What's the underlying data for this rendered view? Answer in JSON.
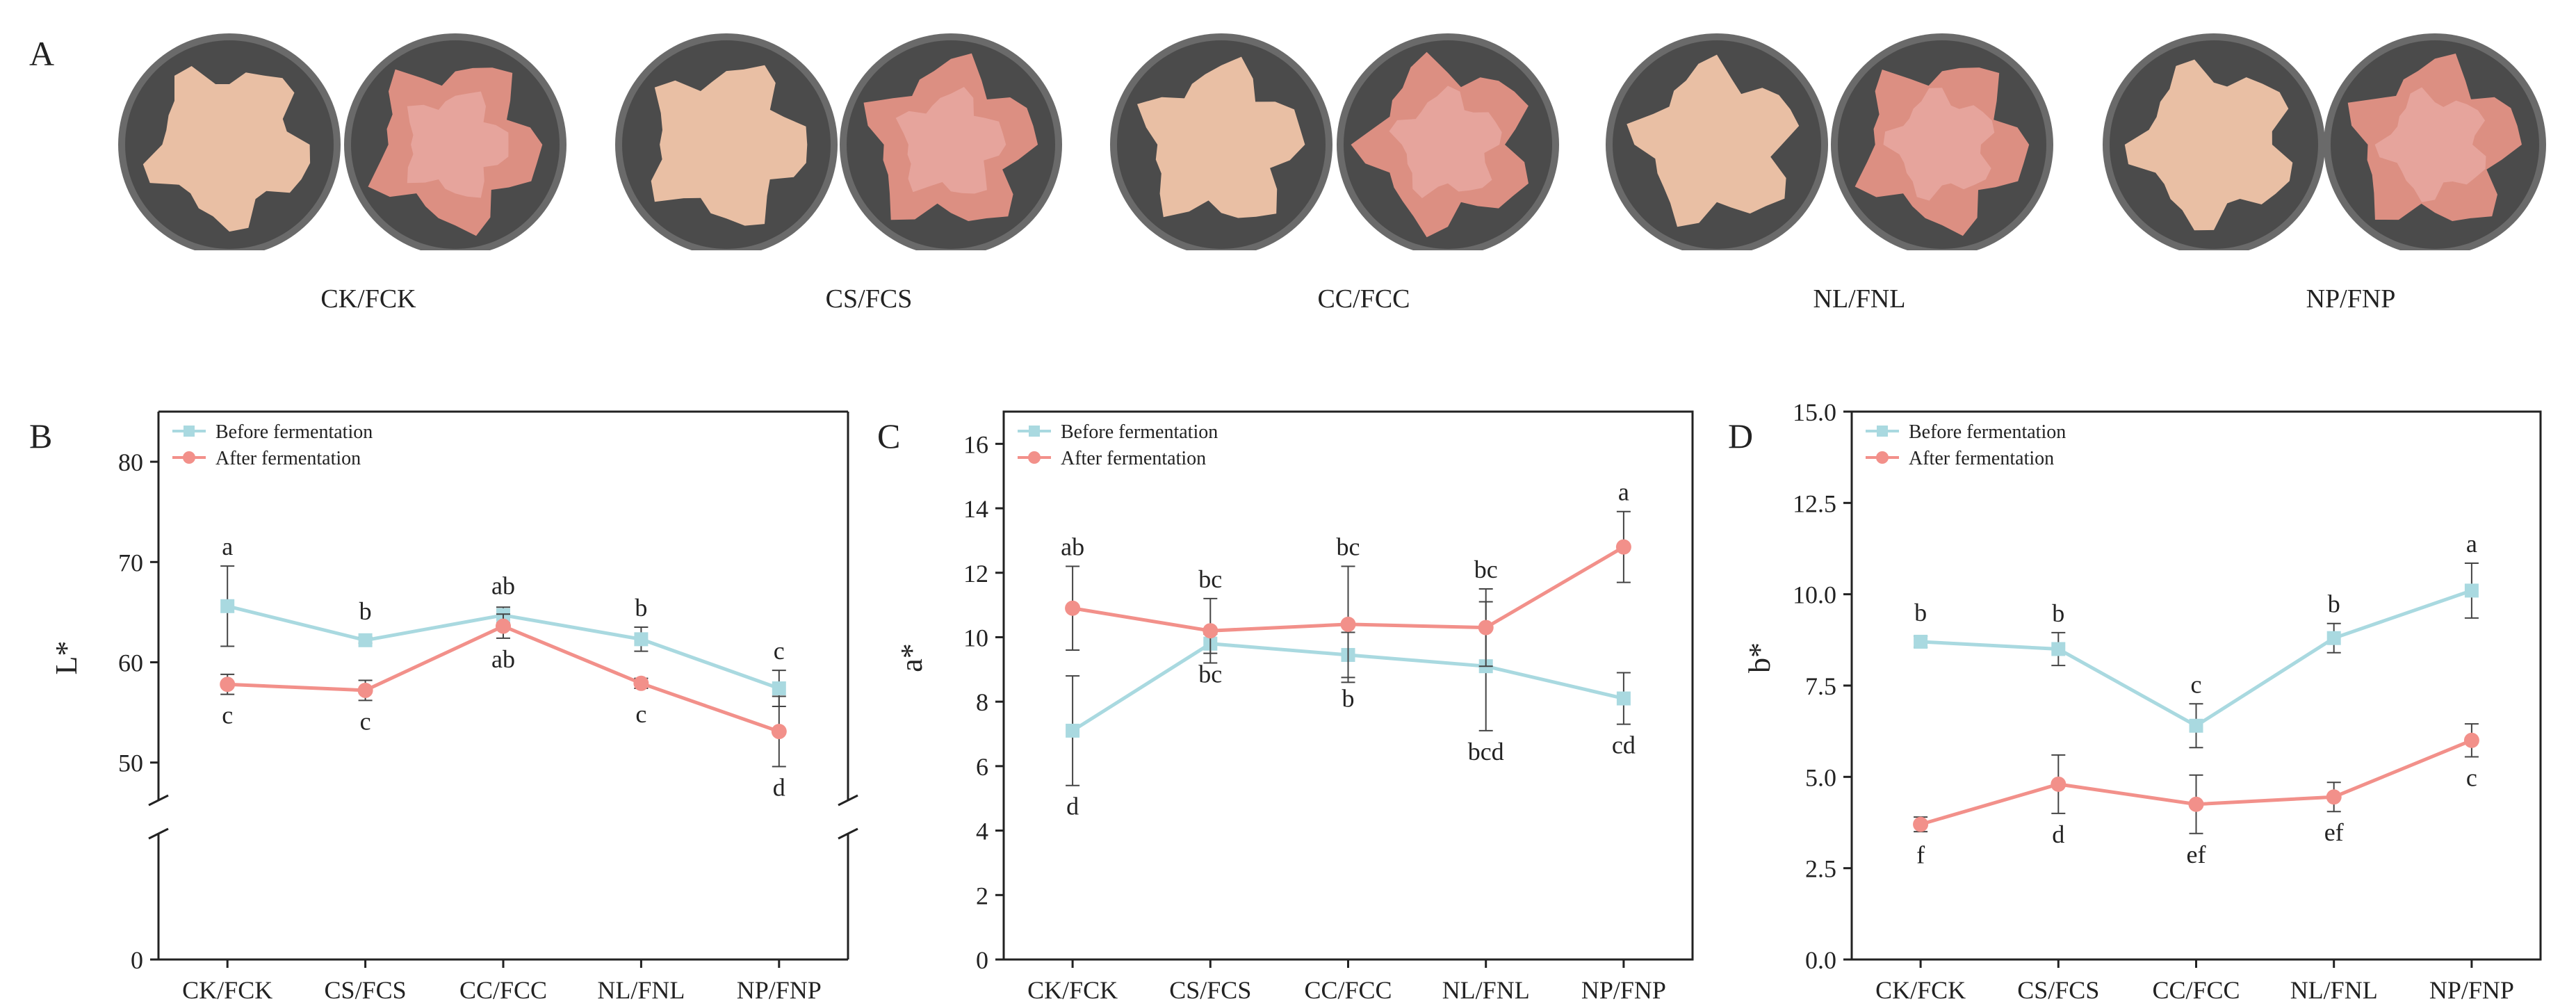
{
  "panel_a": {
    "label": "A",
    "samples": [
      "CK/FCK",
      "CS/FCS",
      "CC/FCC",
      "NL/FNL",
      "NP/FNP"
    ]
  },
  "colors": {
    "before": "#a9d9e0",
    "after": "#f2908a",
    "dish_outer": "#6a6a6a",
    "dish_inner": "#4b4b4b",
    "meat_raw": "#e9bfa4",
    "meat_fermented": "#dc8f82",
    "meat_fermented_center": "#e6a49c"
  },
  "chart_data": [
    {
      "type": "line",
      "panel": "B",
      "ylabel": "L*",
      "xlabel": "",
      "categories": [
        "CK/FCK",
        "CS/FCS",
        "CC/FCC",
        "NL/FNL",
        "NP/FNP"
      ],
      "ylim": [
        0,
        85
      ],
      "axis_break": [
        42,
        47
      ],
      "yticks": [
        0,
        50,
        60,
        70,
        80
      ],
      "ytick_labels": [
        "0",
        "50",
        "60",
        "70",
        "80"
      ],
      "legend": [
        "Before fermentation",
        "After fermentation"
      ],
      "legend_position": "top-left",
      "series": [
        {
          "name": "Before fermentation",
          "values": [
            65.6,
            62.2,
            64.7,
            62.3,
            57.4
          ],
          "errors": [
            4.0,
            0.3,
            0.8,
            1.2,
            1.8
          ],
          "letters": [
            "a",
            "b",
            "ab",
            "b",
            "c"
          ],
          "letter_position": "above"
        },
        {
          "name": "After fermentation",
          "values": [
            57.8,
            57.2,
            63.6,
            57.9,
            53.1
          ],
          "errors": [
            1.0,
            1.0,
            1.2,
            0.5,
            3.5
          ],
          "letters": [
            "c",
            "c",
            "ab",
            "c",
            "d"
          ],
          "letter_position": "below"
        }
      ]
    },
    {
      "type": "line",
      "panel": "C",
      "ylabel": "a*",
      "xlabel": "",
      "categories": [
        "CK/FCK",
        "CS/FCS",
        "CC/FCC",
        "NL/FNL",
        "NP/FNP"
      ],
      "ylim": [
        0,
        17
      ],
      "yticks": [
        0,
        2,
        4,
        6,
        8,
        10,
        12,
        14,
        16
      ],
      "ytick_labels": [
        "0",
        "2",
        "4",
        "6",
        "8",
        "10",
        "12",
        "14",
        "16"
      ],
      "legend": [
        "Before fermentation",
        "After fermentation"
      ],
      "legend_position": "top-left",
      "series": [
        {
          "name": "Before fermentation",
          "values": [
            7.1,
            9.8,
            9.45,
            9.1,
            8.1
          ],
          "errors": [
            1.7,
            0.3,
            0.7,
            2.0,
            0.8
          ],
          "letters": [
            "d",
            "bc",
            "b",
            "bcd",
            "cd"
          ],
          "letter_position": "below"
        },
        {
          "name": "After fermentation",
          "values": [
            10.9,
            10.2,
            10.4,
            10.3,
            12.8
          ],
          "errors": [
            1.3,
            1.0,
            1.8,
            1.2,
            1.1
          ],
          "letters": [
            "ab",
            "bc",
            "bc",
            "bc",
            "a"
          ],
          "letter_position": "above"
        }
      ]
    },
    {
      "type": "line",
      "panel": "D",
      "ylabel": "b*",
      "xlabel": "",
      "categories": [
        "CK/FCK",
        "CS/FCS",
        "CC/FCC",
        "NL/FNL",
        "NP/FNP"
      ],
      "ylim": [
        0,
        15
      ],
      "yticks": [
        0,
        2.5,
        5,
        7.5,
        10,
        12.5,
        15
      ],
      "ytick_labels": [
        "0.0",
        "2.5",
        "5.0",
        "7.5",
        "10.0",
        "12.5",
        "15.0"
      ],
      "legend": [
        "Before fermentation",
        "After fermentation"
      ],
      "legend_position": "top-left",
      "series": [
        {
          "name": "Before fermentation",
          "values": [
            8.7,
            8.5,
            6.4,
            8.8,
            10.1
          ],
          "errors": [
            0.15,
            0.45,
            0.6,
            0.4,
            0.75
          ],
          "letters": [
            "b",
            "b",
            "c",
            "b",
            "a"
          ],
          "letter_position": "above"
        },
        {
          "name": "After fermentation",
          "values": [
            3.7,
            4.8,
            4.25,
            4.45,
            6.0
          ],
          "errors": [
            0.2,
            0.8,
            0.8,
            0.4,
            0.45
          ],
          "letters": [
            "f",
            "d",
            "ef",
            "ef",
            "c"
          ],
          "letter_position": "below"
        }
      ]
    }
  ]
}
